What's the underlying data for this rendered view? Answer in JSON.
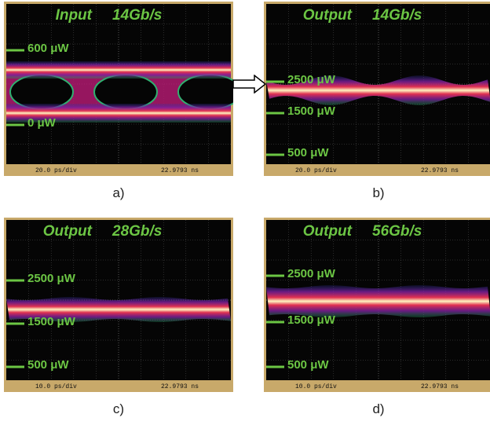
{
  "panels": [
    {
      "signal": "Input",
      "rate": "14Gb/s",
      "levels": [
        "600 μW",
        "0 μW"
      ],
      "footer": {
        "left": "20.0 ps/div",
        "right": "22.9793 ns"
      },
      "caption": "a)"
    },
    {
      "signal": "Output",
      "rate": "14Gb/s",
      "levels": [
        "2500 μW",
        "1500 μW",
        "500 μW"
      ],
      "footer": {
        "left": "20.0 ps/div",
        "right": "22.9793 ns"
      },
      "caption": "b)"
    },
    {
      "signal": "Output",
      "rate": "28Gb/s",
      "levels": [
        "2500 μW",
        "1500 μW",
        "500 μW"
      ],
      "footer": {
        "left": "10.0 ps/div",
        "right": "22.9793 ns"
      },
      "caption": "c)"
    },
    {
      "signal": "Output",
      "rate": "56Gb/s",
      "levels": [
        "2500 μW",
        "1500 μW",
        "500 μW"
      ],
      "footer": {
        "left": "10.0 ps/div",
        "right": "22.9793 ns"
      },
      "caption": "d)"
    }
  ]
}
